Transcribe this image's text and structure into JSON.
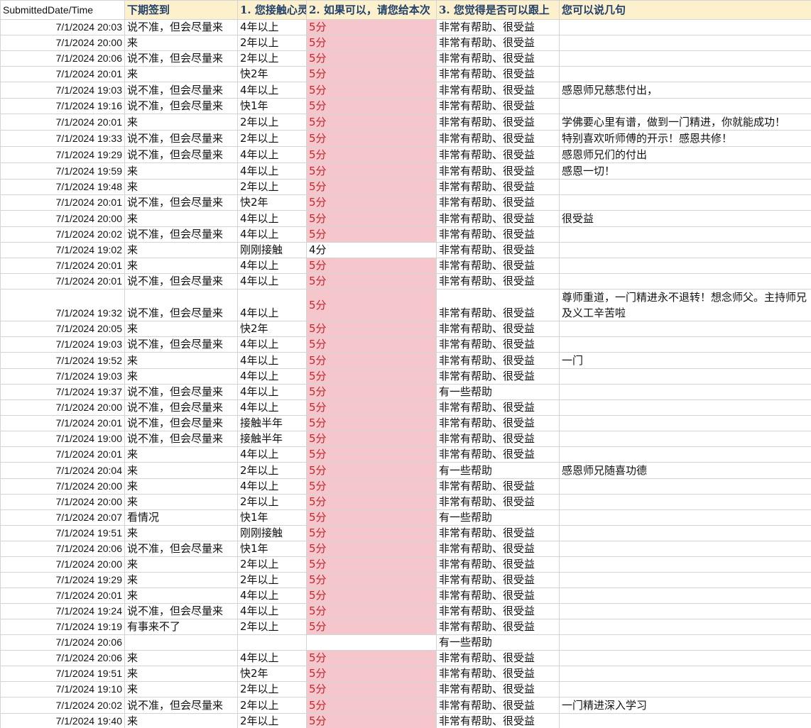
{
  "table": {
    "header": [
      "SubmittedDate/Time",
      "下期签到",
      "1. 您接触心灵",
      "2. 如果可以，请您给本次",
      "3. 您觉得是否可以跟上",
      "您可以说几句"
    ],
    "highlight": {
      "column": 3,
      "fill": "#f5c7cd",
      "color": "#c0282d"
    },
    "rows": [
      [
        "7/1/2024 20:03",
        "说不准，但会尽量来",
        "4年以上",
        "5分",
        "非常有帮助、很受益",
        null
      ],
      [
        "7/1/2024 20:00",
        "来",
        "2年以上",
        "5分",
        "非常有帮助、很受益",
        null
      ],
      [
        "7/1/2024 20:06",
        "说不准，但会尽量来",
        "2年以上",
        "5分",
        "非常有帮助、很受益",
        null
      ],
      [
        "7/1/2024 20:01",
        "来",
        "快2年",
        "5分",
        "非常有帮助、很受益",
        null
      ],
      [
        "7/1/2024 19:03",
        "说不准，但会尽量来",
        "4年以上",
        "5分",
        "非常有帮助、很受益",
        "感恩师兄慈悲付出，"
      ],
      [
        "7/1/2024 19:16",
        "说不准，但会尽量来",
        "快1年",
        "5分",
        "非常有帮助、很受益",
        null
      ],
      [
        "7/1/2024 20:01",
        "来",
        "2年以上",
        "5分",
        "非常有帮助、很受益",
        "学佛要心里有谱，做到一门精进，你就能成功！"
      ],
      [
        "7/1/2024 19:33",
        "说不准，但会尽量来",
        "2年以上",
        "5分",
        "非常有帮助、很受益",
        "特别喜欢听师傅的开示！感恩共修！"
      ],
      [
        "7/1/2024 19:29",
        "说不准，但会尽量来",
        "4年以上",
        "5分",
        "非常有帮助、很受益",
        "感恩师兄们的付出"
      ],
      [
        "7/1/2024 19:59",
        "来",
        "4年以上",
        "5分",
        "非常有帮助、很受益",
        "感恩一切！"
      ],
      [
        "7/1/2024 19:48",
        "来",
        "2年以上",
        "5分",
        "非常有帮助、很受益",
        null
      ],
      [
        "7/1/2024 20:01",
        "说不准，但会尽量来",
        "快2年",
        "5分",
        "非常有帮助、很受益",
        null
      ],
      [
        "7/1/2024 20:00",
        "来",
        "4年以上",
        "5分",
        "非常有帮助、很受益",
        "很受益"
      ],
      [
        "7/1/2024 20:02",
        "说不准，但会尽量来",
        "4年以上",
        "5分",
        "非常有帮助、很受益",
        null
      ],
      [
        "7/1/2024 19:02",
        "来",
        "刚刚接触",
        "4分",
        "非常有帮助、很受益",
        null
      ],
      [
        "7/1/2024 20:01",
        "来",
        "4年以上",
        "5分",
        "非常有帮助、很受益",
        null
      ],
      [
        "7/1/2024 20:01",
        "说不准，但会尽量来",
        "4年以上",
        "5分",
        "非常有帮助、很受益",
        null
      ],
      [
        "7/1/2024 19:32",
        "说不准，但会尽量来",
        "4年以上",
        "5分",
        "非常有帮助、很受益",
        "尊师重道，一门精进永不退转！想念师父。主持师兄及义工辛苦啦"
      ],
      [
        "7/1/2024 20:05",
        "来",
        "快2年",
        "5分",
        "非常有帮助、很受益",
        null
      ],
      [
        "7/1/2024 19:03",
        "说不准，但会尽量来",
        "4年以上",
        "5分",
        "非常有帮助、很受益",
        null
      ],
      [
        "7/1/2024 19:52",
        "来",
        "4年以上",
        "5分",
        "非常有帮助、很受益",
        "一门"
      ],
      [
        "7/1/2024 19:03",
        "来",
        "4年以上",
        "5分",
        "非常有帮助、很受益",
        null
      ],
      [
        "7/1/2024 19:37",
        "说不准，但会尽量来",
        "4年以上",
        "5分",
        "有一些帮助",
        null
      ],
      [
        "7/1/2024 20:00",
        "说不准，但会尽量来",
        "4年以上",
        "5分",
        "非常有帮助、很受益",
        null
      ],
      [
        "7/1/2024 20:01",
        "说不准，但会尽量来",
        "接触半年",
        "5分",
        "非常有帮助、很受益",
        null
      ],
      [
        "7/1/2024 19:00",
        "说不准，但会尽量来",
        "接触半年",
        "5分",
        "非常有帮助、很受益",
        null
      ],
      [
        "7/1/2024 20:01",
        "来",
        "4年以上",
        "5分",
        "非常有帮助、很受益",
        null
      ],
      [
        "7/1/2024 20:04",
        "来",
        "2年以上",
        "5分",
        "有一些帮助",
        "感恩师兄随喜功德"
      ],
      [
        "7/1/2024 20:00",
        "来",
        "4年以上",
        "5分",
        "非常有帮助、很受益",
        null
      ],
      [
        "7/1/2024 20:00",
        "来",
        "2年以上",
        "5分",
        "非常有帮助、很受益",
        null
      ],
      [
        "7/1/2024 20:07",
        "看情况",
        "快1年",
        "5分",
        "有一些帮助",
        null
      ],
      [
        "7/1/2024 19:51",
        "来",
        "刚刚接触",
        "5分",
        "非常有帮助、很受益",
        null
      ],
      [
        "7/1/2024 20:06",
        "说不准，但会尽量来",
        "快1年",
        "5分",
        "非常有帮助、很受益",
        null
      ],
      [
        "7/1/2024 20:00",
        "来",
        "2年以上",
        "5分",
        "非常有帮助、很受益",
        null
      ],
      [
        "7/1/2024 19:29",
        "来",
        "2年以上",
        "5分",
        "非常有帮助、很受益",
        null
      ],
      [
        "7/1/2024 20:01",
        "来",
        "4年以上",
        "5分",
        "非常有帮助、很受益",
        null
      ],
      [
        "7/1/2024 19:24",
        "说不准，但会尽量来",
        "4年以上",
        "5分",
        "非常有帮助、很受益",
        null
      ],
      [
        "7/1/2024 19:19",
        "有事来不了",
        "2年以上",
        "5分",
        "非常有帮助、很受益",
        null
      ],
      [
        "7/1/2024 20:06",
        null,
        null,
        null,
        "有一些帮助",
        null
      ],
      [
        "7/1/2024 20:06",
        "来",
        "4年以上",
        "5分",
        "非常有帮助、很受益",
        null
      ],
      [
        "7/1/2024 19:51",
        "来",
        "快2年",
        "5分",
        "非常有帮助、很受益",
        null
      ],
      [
        "7/1/2024 19:10",
        "来",
        "2年以上",
        "5分",
        "非常有帮助、很受益",
        null
      ],
      [
        "7/1/2024 20:02",
        "说不准，但会尽量来",
        "2年以上",
        "5分",
        "非常有帮助、很受益",
        "一门精进深入学习"
      ],
      [
        "7/1/2024 19:40",
        "来",
        "2年以上",
        "5分",
        "非常有帮助、很受益",
        null
      ]
    ]
  }
}
